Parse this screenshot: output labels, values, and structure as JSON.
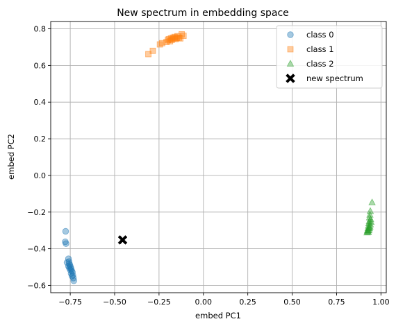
{
  "chart_data": {
    "type": "scatter",
    "title": "New spectrum in embedding space",
    "xlabel": "embed PC1",
    "ylabel": "embed PC2",
    "xlim": [
      -0.86,
      1.03
    ],
    "ylim": [
      -0.64,
      0.84
    ],
    "xticks": [
      -0.75,
      -0.5,
      -0.25,
      0.0,
      0.25,
      0.5,
      0.75,
      1.0
    ],
    "xtick_labels": [
      "−0.75",
      "−0.50",
      "−0.25",
      "0.00",
      "0.25",
      "0.50",
      "0.75",
      "1.00"
    ],
    "yticks": [
      -0.6,
      -0.4,
      -0.2,
      0.0,
      0.2,
      0.4,
      0.6,
      0.8
    ],
    "ytick_labels": [
      "−0.6",
      "−0.4",
      "−0.2",
      "0.0",
      "0.2",
      "0.4",
      "0.6",
      "0.8"
    ],
    "grid": true,
    "legend_position": "top-right",
    "series": [
      {
        "name": "class 0",
        "marker": "circle",
        "color": "#1f77b4",
        "points": [
          [
            -0.776,
            -0.305
          ],
          [
            -0.778,
            -0.362
          ],
          [
            -0.774,
            -0.372
          ],
          [
            -0.768,
            -0.475
          ],
          [
            -0.76,
            -0.455
          ],
          [
            -0.757,
            -0.47
          ],
          [
            -0.755,
            -0.482
          ],
          [
            -0.752,
            -0.49
          ],
          [
            -0.76,
            -0.495
          ],
          [
            -0.748,
            -0.5
          ],
          [
            -0.755,
            -0.505
          ],
          [
            -0.745,
            -0.51
          ],
          [
            -0.75,
            -0.515
          ],
          [
            -0.742,
            -0.52
          ],
          [
            -0.738,
            -0.528
          ],
          [
            -0.745,
            -0.535
          ],
          [
            -0.735,
            -0.545
          ],
          [
            -0.74,
            -0.55
          ],
          [
            -0.732,
            -0.56
          ],
          [
            -0.73,
            -0.575
          ]
        ]
      },
      {
        "name": "class 1",
        "marker": "square",
        "color": "#ff7f0e",
        "points": [
          [
            -0.31,
            0.662
          ],
          [
            -0.285,
            0.68
          ],
          [
            -0.245,
            0.715
          ],
          [
            -0.232,
            0.722
          ],
          [
            -0.208,
            0.728
          ],
          [
            -0.2,
            0.738
          ],
          [
            -0.195,
            0.744
          ],
          [
            -0.188,
            0.732
          ],
          [
            -0.183,
            0.748
          ],
          [
            -0.178,
            0.74
          ],
          [
            -0.172,
            0.752
          ],
          [
            -0.168,
            0.746
          ],
          [
            -0.162,
            0.756
          ],
          [
            -0.157,
            0.744
          ],
          [
            -0.15,
            0.75
          ],
          [
            -0.146,
            0.76
          ],
          [
            -0.138,
            0.752
          ],
          [
            -0.13,
            0.748
          ],
          [
            -0.122,
            0.77
          ],
          [
            -0.112,
            0.762
          ]
        ]
      },
      {
        "name": "class 2",
        "marker": "triangle",
        "color": "#2ca02c",
        "points": [
          [
            0.95,
            -0.148
          ],
          [
            0.94,
            -0.195
          ],
          [
            0.938,
            -0.215
          ],
          [
            0.936,
            -0.23
          ],
          [
            0.942,
            -0.24
          ],
          [
            0.935,
            -0.25
          ],
          [
            0.944,
            -0.255
          ],
          [
            0.932,
            -0.262
          ],
          [
            0.94,
            -0.268
          ],
          [
            0.93,
            -0.275
          ],
          [
            0.938,
            -0.28
          ],
          [
            0.928,
            -0.288
          ],
          [
            0.935,
            -0.29
          ],
          [
            0.926,
            -0.298
          ],
          [
            0.932,
            -0.3
          ],
          [
            0.924,
            -0.305
          ],
          [
            0.929,
            -0.31
          ],
          [
            0.922,
            -0.312
          ],
          [
            0.926,
            -0.3
          ],
          [
            0.934,
            -0.285
          ]
        ]
      },
      {
        "name": "new spectrum",
        "marker": "x-filled",
        "color": "#000000",
        "points": [
          [
            -0.455,
            -0.352
          ]
        ]
      }
    ]
  }
}
